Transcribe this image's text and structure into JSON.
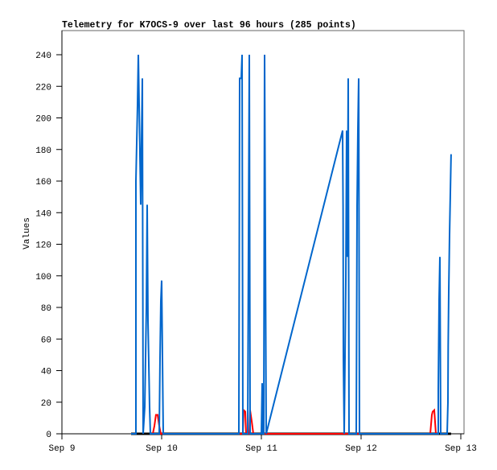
{
  "chart_data": {
    "type": "line",
    "title": "Telemetry for K7OCS-9 over last 96 hours (285 points)",
    "xlabel": "",
    "ylabel": "Values",
    "x_ticks": [
      "Sep 9",
      "Sep 10",
      "Sep 11",
      "Sep 12",
      "Sep 13"
    ],
    "xlim": [
      "Sep 9 00:00",
      "Sep 13 00:00"
    ],
    "y_ticks": [
      0,
      20,
      40,
      60,
      80,
      100,
      120,
      140,
      160,
      180,
      200,
      220,
      240
    ],
    "ylim": [
      0,
      255
    ],
    "grid": false,
    "legend": "none",
    "series": [
      {
        "color": "#000000",
        "points": [
          [
            "Sep 9 16:39",
            0
          ],
          [
            "Sep 12 21:40",
            0
          ]
        ]
      },
      {
        "color": "#ff0000",
        "points": [
          [
            "Sep 9 21:52",
            0
          ],
          [
            "Sep 9 22:15",
            5
          ],
          [
            "Sep 9 22:38",
            12
          ],
          [
            "Sep 9 23:02",
            12
          ],
          [
            "Sep 9 23:25",
            5
          ],
          [
            "Sep 9 23:48",
            0
          ],
          [
            "Sep 10 19:33",
            0
          ],
          [
            "Sep 10 19:44",
            15
          ],
          [
            "Sep 10 20:08",
            14
          ],
          [
            "Sep 10 20:19",
            0
          ],
          [
            "Sep 10 21:06",
            0
          ],
          [
            "Sep 10 21:17",
            15
          ],
          [
            "Sep 10 21:41",
            8
          ],
          [
            "Sep 10 22:04",
            0
          ],
          [
            "Sep 12 16:39",
            0
          ],
          [
            "Sep 12 17:02",
            12
          ],
          [
            "Sep 12 17:13",
            14
          ],
          [
            "Sep 12 17:37",
            15
          ],
          [
            "Sep 12 18:00",
            0
          ]
        ]
      },
      {
        "color": "#0066cc",
        "points": [
          [
            "Sep 9 16:39",
            0
          ],
          [
            "Sep 9 17:48",
            0
          ],
          [
            "Sep 9 17:48",
            160
          ],
          [
            "Sep 9 18:12",
            208
          ],
          [
            "Sep 9 18:23",
            240
          ],
          [
            "Sep 9 18:35",
            208
          ],
          [
            "Sep 9 18:58",
            145
          ],
          [
            "Sep 9 19:21",
            225
          ],
          [
            "Sep 9 19:33",
            0
          ],
          [
            "Sep 9 19:56",
            17
          ],
          [
            "Sep 9 20:19",
            80
          ],
          [
            "Sep 9 20:31",
            145
          ],
          [
            "Sep 9 20:43",
            72
          ],
          [
            "Sep 9 21:06",
            17
          ],
          [
            "Sep 9 21:17",
            0
          ],
          [
            "Sep 9 23:25",
            0
          ],
          [
            "Sep 9 23:37",
            48
          ],
          [
            "Sep 9 23:48",
            84
          ],
          [
            "Sep 10 00:00",
            97
          ],
          [
            "Sep 10 00:12",
            48
          ],
          [
            "Sep 10 00:23",
            0
          ],
          [
            "Sep 10 18:35",
            0
          ],
          [
            "Sep 10 18:46",
            225
          ],
          [
            "Sep 10 19:10",
            225
          ],
          [
            "Sep 10 19:21",
            240
          ],
          [
            "Sep 10 19:33",
            0
          ],
          [
            "Sep 10 20:43",
            0
          ],
          [
            "Sep 10 20:54",
            120
          ],
          [
            "Sep 10 21:06",
            240
          ],
          [
            "Sep 10 21:17",
            0
          ],
          [
            "Sep 11 00:00",
            0
          ],
          [
            "Sep 11 00:12",
            32
          ],
          [
            "Sep 11 00:23",
            0
          ],
          [
            "Sep 11 00:35",
            0
          ],
          [
            "Sep 11 00:46",
            240
          ],
          [
            "Sep 11 00:58",
            120
          ],
          [
            "Sep 11 01:10",
            0
          ],
          [
            "Sep 11 19:33",
            192
          ],
          [
            "Sep 11 19:40",
            144
          ],
          [
            "Sep 11 19:45",
            48
          ],
          [
            "Sep 11 19:56",
            0
          ],
          [
            "Sep 11 20:19",
            97
          ],
          [
            "Sep 11 20:31",
            192
          ],
          [
            "Sep 11 20:43",
            112
          ],
          [
            "Sep 11 20:54",
            225
          ],
          [
            "Sep 11 21:06",
            0
          ],
          [
            "Sep 11 22:50",
            0
          ],
          [
            "Sep 11 23:02",
            144
          ],
          [
            "Sep 11 23:13",
            192
          ],
          [
            "Sep 11 23:25",
            225
          ],
          [
            "Sep 11 23:37",
            0
          ],
          [
            "Sep 12 18:35",
            0
          ],
          [
            "Sep 12 18:35",
            28
          ],
          [
            "Sep 12 18:46",
            85
          ],
          [
            "Sep 12 18:58",
            112
          ],
          [
            "Sep 12 19:10",
            0
          ],
          [
            "Sep 12 20:42",
            0
          ],
          [
            "Sep 12 20:54",
            20
          ],
          [
            "Sep 12 20:58",
            55
          ],
          [
            "Sep 12 21:06",
            90
          ],
          [
            "Sep 12 21:17",
            126
          ],
          [
            "Sep 12 21:40",
            177
          ]
        ]
      }
    ]
  }
}
